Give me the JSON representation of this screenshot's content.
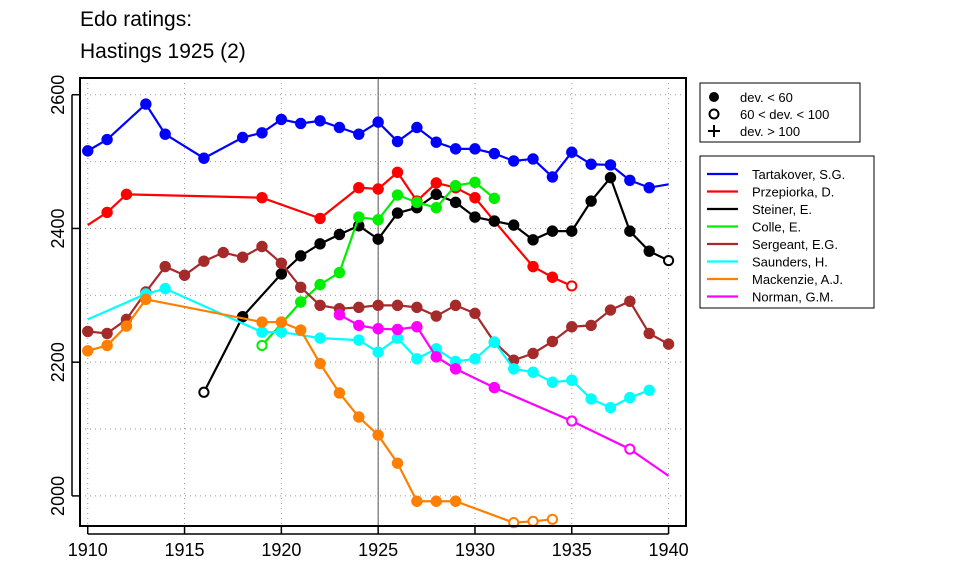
{
  "chart_data": {
    "type": "line",
    "title_lines": [
      "Edo ratings:",
      "Hastings 1925 (2)"
    ],
    "xlabel": "",
    "ylabel": "",
    "xlim": [
      1909.6,
      1940.9
    ],
    "ylim": [
      1955,
      2625
    ],
    "x_ticks": [
      1910,
      1915,
      1920,
      1925,
      1930,
      1935,
      1940
    ],
    "y_ticks": [
      2000,
      2200,
      2400,
      2600
    ],
    "grid": true,
    "reference_line_x": 1925,
    "marker_legend": [
      {
        "label": "dev. < 60",
        "symbol": "filled-circle"
      },
      {
        "label": "60 < dev. < 100",
        "symbol": "open-circle"
      },
      {
        "label": "dev. > 100",
        "symbol": "plus"
      }
    ],
    "series": [
      {
        "name": "Tartakover, S.G.",
        "color": "#0000ff",
        "points": [
          [
            1910,
            2516,
            "f"
          ],
          [
            1911,
            2533,
            "f"
          ],
          [
            1913,
            2586,
            "f"
          ],
          [
            1914,
            2541,
            "f"
          ],
          [
            1916,
            2505,
            "f"
          ],
          [
            1918,
            2536,
            "f"
          ],
          [
            1919,
            2543,
            "f"
          ],
          [
            1920,
            2563,
            "f"
          ],
          [
            1921,
            2557,
            "f"
          ],
          [
            1922,
            2561,
            "f"
          ],
          [
            1923,
            2551,
            "f"
          ],
          [
            1924,
            2541,
            "f"
          ],
          [
            1925,
            2559,
            "f"
          ],
          [
            1926,
            2530,
            "f"
          ],
          [
            1927,
            2551,
            "f"
          ],
          [
            1928,
            2529,
            "f"
          ],
          [
            1929,
            2519,
            "f"
          ],
          [
            1930,
            2519,
            "f"
          ],
          [
            1931,
            2512,
            "f"
          ],
          [
            1932,
            2501,
            "f"
          ],
          [
            1933,
            2504,
            "f"
          ],
          [
            1934,
            2477,
            "f"
          ],
          [
            1935,
            2514,
            "f"
          ],
          [
            1936,
            2496,
            "f"
          ],
          [
            1937,
            2495,
            "f"
          ],
          [
            1938,
            2472,
            "f"
          ],
          [
            1939,
            2461,
            "f"
          ],
          [
            1940,
            2466,
            "n"
          ]
        ]
      },
      {
        "name": "Przepiorka, D.",
        "color": "#ff0000",
        "points": [
          [
            1910,
            2405,
            "n"
          ],
          [
            1911,
            2424,
            "f"
          ],
          [
            1912,
            2451,
            "f"
          ],
          [
            1919,
            2446,
            "f"
          ],
          [
            1922,
            2415,
            "f"
          ],
          [
            1924,
            2461,
            "f"
          ],
          [
            1925,
            2459,
            "f"
          ],
          [
            1926,
            2484,
            "f"
          ],
          [
            1927,
            2441,
            "f"
          ],
          [
            1928,
            2468,
            "f"
          ],
          [
            1929,
            2461,
            "f"
          ],
          [
            1930,
            2446,
            "f"
          ],
          [
            1931,
            2411,
            "f"
          ],
          [
            1933,
            2343,
            "f"
          ],
          [
            1934,
            2327,
            "f"
          ],
          [
            1935,
            2314,
            "o"
          ]
        ]
      },
      {
        "name": "Steiner, E.",
        "color": "#000000",
        "points": [
          [
            1916,
            2155,
            "o"
          ],
          [
            1918,
            2268,
            "f"
          ],
          [
            1920,
            2332,
            "f"
          ],
          [
            1921,
            2359,
            "f"
          ],
          [
            1922,
            2377,
            "f"
          ],
          [
            1923,
            2391,
            "f"
          ],
          [
            1924,
            2404,
            "f"
          ],
          [
            1925,
            2384,
            "f"
          ],
          [
            1926,
            2423,
            "f"
          ],
          [
            1927,
            2431,
            "f"
          ],
          [
            1928,
            2451,
            "f"
          ],
          [
            1929,
            2439,
            "f"
          ],
          [
            1930,
            2417,
            "f"
          ],
          [
            1931,
            2411,
            "f"
          ],
          [
            1932,
            2405,
            "f"
          ],
          [
            1933,
            2383,
            "f"
          ],
          [
            1934,
            2396,
            "f"
          ],
          [
            1935,
            2396,
            "f"
          ],
          [
            1936,
            2441,
            "f"
          ],
          [
            1937,
            2476,
            "f"
          ],
          [
            1938,
            2396,
            "f"
          ],
          [
            1939,
            2366,
            "f"
          ],
          [
            1940,
            2352,
            "o"
          ]
        ]
      },
      {
        "name": "Colle, E.",
        "color": "#00ee00",
        "points": [
          [
            1919,
            2225,
            "o"
          ],
          [
            1921,
            2290,
            "f"
          ],
          [
            1922,
            2316,
            "f"
          ],
          [
            1923,
            2334,
            "f"
          ],
          [
            1924,
            2417,
            "f"
          ],
          [
            1925,
            2413,
            "f"
          ],
          [
            1926,
            2450,
            "f"
          ],
          [
            1927,
            2439,
            "f"
          ],
          [
            1928,
            2431,
            "f"
          ],
          [
            1929,
            2464,
            "f"
          ],
          [
            1930,
            2469,
            "f"
          ],
          [
            1931,
            2445,
            "f"
          ]
        ]
      },
      {
        "name": "Sergeant, E.G.",
        "color": "#a52a2a",
        "points": [
          [
            1910,
            2246,
            "f"
          ],
          [
            1911,
            2243,
            "f"
          ],
          [
            1912,
            2264,
            "f"
          ],
          [
            1913,
            2305,
            "f"
          ],
          [
            1914,
            2343,
            "f"
          ],
          [
            1915,
            2330,
            "f"
          ],
          [
            1916,
            2351,
            "f"
          ],
          [
            1917,
            2364,
            "f"
          ],
          [
            1918,
            2357,
            "f"
          ],
          [
            1919,
            2373,
            "f"
          ],
          [
            1920,
            2348,
            "f"
          ],
          [
            1921,
            2312,
            "f"
          ],
          [
            1922,
            2285,
            "f"
          ],
          [
            1923,
            2280,
            "f"
          ],
          [
            1924,
            2282,
            "f"
          ],
          [
            1925,
            2285,
            "f"
          ],
          [
            1926,
            2285,
            "f"
          ],
          [
            1927,
            2282,
            "f"
          ],
          [
            1928,
            2269,
            "f"
          ],
          [
            1929,
            2285,
            "f"
          ],
          [
            1930,
            2273,
            "f"
          ],
          [
            1931,
            2230,
            "f"
          ],
          [
            1932,
            2203,
            "f"
          ],
          [
            1933,
            2213,
            "f"
          ],
          [
            1934,
            2231,
            "f"
          ],
          [
            1935,
            2253,
            "f"
          ],
          [
            1936,
            2255,
            "f"
          ],
          [
            1937,
            2278,
            "f"
          ],
          [
            1938,
            2291,
            "f"
          ],
          [
            1939,
            2243,
            "f"
          ],
          [
            1940,
            2227,
            "f"
          ]
        ]
      },
      {
        "name": "Saunders, H.",
        "color": "#00ffff",
        "points": [
          [
            1910,
            2264,
            "n"
          ],
          [
            1913,
            2302,
            "f"
          ],
          [
            1914,
            2310,
            "f"
          ],
          [
            1919,
            2245,
            "f"
          ],
          [
            1920,
            2245,
            "f"
          ],
          [
            1922,
            2236,
            "f"
          ],
          [
            1924,
            2233,
            "f"
          ],
          [
            1925,
            2215,
            "f"
          ],
          [
            1926,
            2236,
            "f"
          ],
          [
            1927,
            2205,
            "f"
          ],
          [
            1928,
            2220,
            "f"
          ],
          [
            1929,
            2201,
            "f"
          ],
          [
            1930,
            2205,
            "f"
          ],
          [
            1931,
            2230,
            "f"
          ],
          [
            1932,
            2190,
            "f"
          ],
          [
            1933,
            2185,
            "f"
          ],
          [
            1934,
            2170,
            "f"
          ],
          [
            1935,
            2173,
            "f"
          ],
          [
            1936,
            2145,
            "f"
          ],
          [
            1937,
            2132,
            "f"
          ],
          [
            1938,
            2147,
            "f"
          ],
          [
            1939,
            2158,
            "f"
          ]
        ]
      },
      {
        "name": "Mackenzie, A.J.",
        "color": "#ff7f00",
        "points": [
          [
            1910,
            2217,
            "f"
          ],
          [
            1911,
            2225,
            "f"
          ],
          [
            1912,
            2254,
            "f"
          ],
          [
            1913,
            2294,
            "f"
          ],
          [
            1919,
            2260,
            "f"
          ],
          [
            1920,
            2260,
            "f"
          ],
          [
            1921,
            2248,
            "f"
          ],
          [
            1922,
            2198,
            "f"
          ],
          [
            1923,
            2154,
            "f"
          ],
          [
            1924,
            2118,
            "f"
          ],
          [
            1925,
            2091,
            "f"
          ],
          [
            1926,
            2049,
            "f"
          ],
          [
            1927,
            1992,
            "f"
          ],
          [
            1928,
            1992,
            "f"
          ],
          [
            1929,
            1992,
            "f"
          ],
          [
            1932,
            1960,
            "o"
          ],
          [
            1933,
            1962,
            "o"
          ],
          [
            1934,
            1965,
            "o"
          ]
        ]
      },
      {
        "name": "Norman, G.M.",
        "color": "#ff00ff",
        "points": [
          [
            1923,
            2271,
            "f"
          ],
          [
            1924,
            2255,
            "f"
          ],
          [
            1925,
            2250,
            "f"
          ],
          [
            1926,
            2249,
            "f"
          ],
          [
            1927,
            2253,
            "f"
          ],
          [
            1928,
            2208,
            "f"
          ],
          [
            1929,
            2190,
            "f"
          ],
          [
            1931,
            2162,
            "f"
          ],
          [
            1935,
            2112,
            "o"
          ],
          [
            1938,
            2070,
            "o"
          ],
          [
            1940,
            2030,
            "n"
          ]
        ]
      }
    ]
  }
}
